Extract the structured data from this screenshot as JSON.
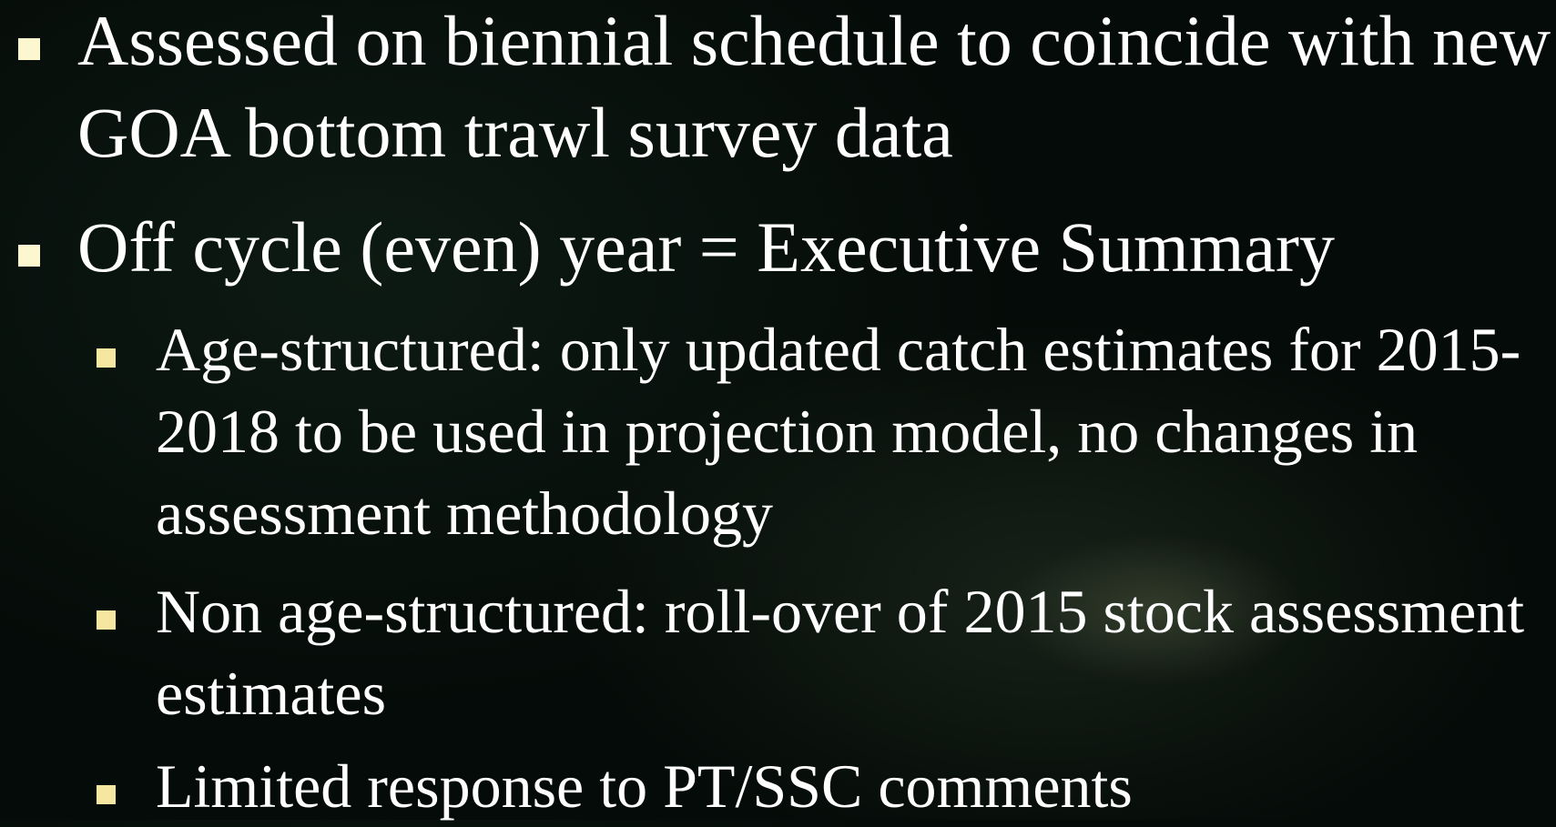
{
  "bullets": [
    {
      "text": "Assessed on biennial schedule to coincide with new GOA bottom trawl survey data",
      "sub": []
    },
    {
      "text": "Off cycle (even) year = Executive Summary",
      "sub": [
        "Age-structured: only updated catch estimates for 2015-2018 to be used in projection model, no changes in assessment methodology",
        "Non age-structured: roll-over of 2015 stock assessment estimates",
        "Limited response to PT/SSC comments"
      ]
    }
  ]
}
